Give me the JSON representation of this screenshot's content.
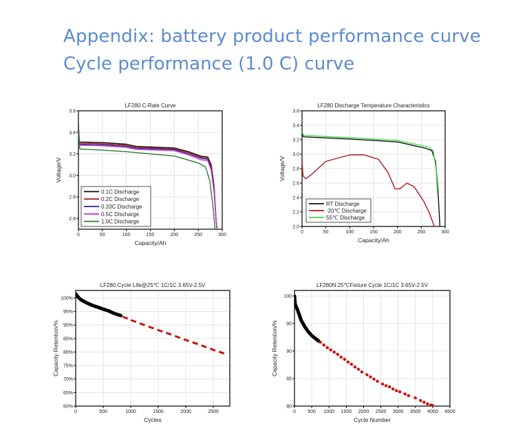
{
  "header": {
    "title": "Appendix: battery product performance curve",
    "subtitle": "Cycle performance (1.0 C) curve",
    "color": "#5b8bd0"
  },
  "chart_data": [
    {
      "type": "line",
      "title": "LF280 C-Rate Curve",
      "xlabel": "Capacity/Ah",
      "ylabel": "Voltage/V",
      "xlim": [
        0,
        300
      ],
      "ylim": [
        2.5,
        3.6
      ],
      "xticks": [
        0,
        50,
        100,
        150,
        200,
        250,
        300
      ],
      "yticks": [
        2.6,
        2.8,
        3.0,
        3.2,
        3.4,
        3.6
      ],
      "ytick_labels": [
        "2.6",
        "2.8",
        "3.0",
        "3.2",
        "3.4",
        "3.6"
      ],
      "grid": true,
      "legend": "bottom-left",
      "series": [
        {
          "name": "0.1C   Discharge",
          "color": "#111111",
          "points": [
            [
              0,
              3.47
            ],
            [
              2,
              3.31
            ],
            [
              50,
              3.305
            ],
            [
              100,
              3.29
            ],
            [
              120,
              3.27
            ],
            [
              200,
              3.255
            ],
            [
              230,
              3.22
            ],
            [
              255,
              3.18
            ],
            [
              270,
              3.17
            ],
            [
              277,
              3.1
            ],
            [
              283,
              2.9
            ],
            [
              287,
              2.6
            ],
            [
              289,
              2.5
            ]
          ]
        },
        {
          "name": "0.2C   Discharge",
          "color": "#b02020",
          "points": [
            [
              0,
              3.45
            ],
            [
              2,
              3.3
            ],
            [
              50,
              3.295
            ],
            [
              100,
              3.28
            ],
            [
              120,
              3.262
            ],
            [
              200,
              3.248
            ],
            [
              230,
              3.212
            ],
            [
              255,
              3.17
            ],
            [
              270,
              3.16
            ],
            [
              277,
              3.09
            ],
            [
              283,
              2.88
            ],
            [
              287,
              2.6
            ],
            [
              289,
              2.5
            ]
          ]
        },
        {
          "name": "0.33C Discharge",
          "color": "#22228a",
          "points": [
            [
              0,
              3.43
            ],
            [
              2,
              3.29
            ],
            [
              50,
              3.285
            ],
            [
              100,
              3.27
            ],
            [
              120,
              3.252
            ],
            [
              200,
              3.24
            ],
            [
              230,
              3.2
            ],
            [
              255,
              3.16
            ],
            [
              270,
              3.15
            ],
            [
              277,
              3.07
            ],
            [
              283,
              2.86
            ],
            [
              287,
              2.6
            ],
            [
              289,
              2.5
            ]
          ]
        },
        {
          "name": "0.5C   Discharge",
          "color": "#cc33cc",
          "points": [
            [
              0,
              3.41
            ],
            [
              2,
              3.28
            ],
            [
              50,
              3.275
            ],
            [
              100,
              3.26
            ],
            [
              120,
              3.242
            ],
            [
              200,
              3.23
            ],
            [
              230,
              3.19
            ],
            [
              255,
              3.145
            ],
            [
              270,
              3.135
            ],
            [
              277,
              3.05
            ],
            [
              283,
              2.84
            ],
            [
              287,
              2.6
            ],
            [
              289,
              2.5
            ]
          ]
        },
        {
          "name": "1.0C   Discharge",
          "color": "#2e7d32",
          "points": [
            [
              0,
              3.4
            ],
            [
              3,
              3.245
            ],
            [
              50,
              3.235
            ],
            [
              100,
              3.22
            ],
            [
              200,
              3.18
            ],
            [
              250,
              3.115
            ],
            [
              265,
              3.08
            ],
            [
              274,
              2.95
            ],
            [
              281,
              2.7
            ],
            [
              285,
              2.5
            ]
          ]
        }
      ]
    },
    {
      "type": "line",
      "title": "LF280 Discharge Temperature Characteristics",
      "xlabel": "Capacity/Ah",
      "ylabel": "Voltage/V",
      "xlim": [
        0,
        300
      ],
      "ylim": [
        2.0,
        3.6
      ],
      "xticks": [
        0,
        50,
        100,
        150,
        200,
        250,
        300
      ],
      "yticks": [
        2.0,
        2.2,
        2.4,
        2.6,
        2.8,
        3.0,
        3.2,
        3.4,
        3.6
      ],
      "ytick_labels": [
        "2.0",
        "2.2",
        "2.4",
        "2.6",
        "2.8",
        "3.0",
        "3.2",
        "3.4",
        "3.6"
      ],
      "grid": true,
      "legend": "bottom-left",
      "series": [
        {
          "name": "RT        Discharge",
          "color": "#111111",
          "points": [
            [
              0,
              3.28
            ],
            [
              3,
              3.24
            ],
            [
              100,
              3.21
            ],
            [
              200,
              3.17
            ],
            [
              260,
              3.08
            ],
            [
              272,
              3.05
            ],
            [
              280,
              2.9
            ],
            [
              285,
              2.5
            ],
            [
              289,
              2.0
            ]
          ]
        },
        {
          "name": "-20℃   Discharge",
          "color": "#b01818",
          "points": [
            [
              0,
              2.9
            ],
            [
              2,
              2.7
            ],
            [
              8,
              2.66
            ],
            [
              20,
              2.72
            ],
            [
              50,
              2.9
            ],
            [
              100,
              2.99
            ],
            [
              130,
              2.99
            ],
            [
              160,
              2.93
            ],
            [
              180,
              2.75
            ],
            [
              195,
              2.52
            ],
            [
              205,
              2.52
            ],
            [
              220,
              2.6
            ],
            [
              235,
              2.55
            ],
            [
              255,
              2.35
            ],
            [
              268,
              2.17
            ],
            [
              277,
              2.0
            ]
          ]
        },
        {
          "name": "55℃    Discharge",
          "color": "#44dd44",
          "points": [
            [
              0,
              3.32
            ],
            [
              3,
              3.26
            ],
            [
              100,
              3.23
            ],
            [
              200,
              3.19
            ],
            [
              265,
              3.1
            ],
            [
              275,
              3.05
            ],
            [
              281,
              2.8
            ],
            [
              284,
              2.45
            ]
          ]
        }
      ]
    },
    {
      "type": "scatter",
      "title": "LF280  Cycle Life@25℃ 1C/1C 3.65V-2.5V",
      "xlabel": "Cycles",
      "ylabel": "Capacity Retention/%",
      "xlim": [
        0,
        2800
      ],
      "ylim": [
        60,
        102.8
      ],
      "xticks": [
        0,
        500,
        1000,
        1500,
        2000,
        2500
      ],
      "yticks": [
        60,
        65,
        70,
        75,
        80,
        85,
        90,
        95,
        100
      ],
      "ytick_labels": [
        "60%",
        "65%",
        "70%",
        "75%",
        "80%",
        "85%",
        "90%",
        "95%",
        "100%"
      ],
      "grid": true,
      "series": [
        {
          "color": "#000000",
          "style": "thick",
          "points": [
            [
              0,
              101.5
            ],
            [
              50,
              100.2
            ],
            [
              100,
              99.3
            ],
            [
              200,
              98.2
            ],
            [
              300,
              97.3
            ],
            [
              400,
              96.6
            ],
            [
              500,
              95.9
            ],
            [
              600,
              95.2
            ],
            [
              700,
              94.3
            ],
            [
              820,
              93.5
            ]
          ]
        },
        {
          "color": "#cc1111",
          "style": "dash",
          "points": [
            [
              900,
              92.7
            ],
            [
              1050,
              91.5
            ],
            [
              1210,
              90.3
            ],
            [
              1370,
              89.1
            ],
            [
              1530,
              87.9
            ],
            [
              1690,
              86.8
            ],
            [
              1850,
              85.6
            ],
            [
              2010,
              84.4
            ],
            [
              2170,
              83.3
            ],
            [
              2330,
              82.1
            ],
            [
              2490,
              80.9
            ],
            [
              2650,
              79.8
            ]
          ]
        }
      ]
    },
    {
      "type": "scatter",
      "title": "LF280N 25℃Fixture Cycle 1C/1C 3.65V-2.5V",
      "xlabel": "Cycle Number",
      "ylabel": "Capacity Retention/%",
      "xlim": [
        0,
        4500
      ],
      "ylim": [
        80,
        101
      ],
      "xticks": [
        0,
        500,
        1000,
        1500,
        2000,
        2500,
        3000,
        3500,
        4000,
        4500
      ],
      "yticks": [
        80,
        85,
        90,
        95,
        100
      ],
      "ytick_labels": [
        "80",
        "85",
        "90",
        "95",
        "100"
      ],
      "grid": true,
      "series": [
        {
          "color": "#000000",
          "style": "thick",
          "points": [
            [
              0,
              100
            ],
            [
              20,
              98.5
            ],
            [
              100,
              97.3
            ],
            [
              200,
              95.5
            ],
            [
              300,
              94.4
            ],
            [
              400,
              93.5
            ],
            [
              500,
              92.8
            ],
            [
              600,
              92.3
            ],
            [
              700,
              91.8
            ]
          ]
        },
        {
          "color": "#cc1111",
          "style": "dots",
          "points": [
            [
              750,
              91.6
            ],
            [
              850,
              91.1
            ],
            [
              950,
              90.6
            ],
            [
              1050,
              90.2
            ],
            [
              1150,
              89.8
            ],
            [
              1250,
              89.4
            ],
            [
              1350,
              88.9
            ],
            [
              1450,
              88.5
            ],
            [
              1550,
              88.0
            ],
            [
              1650,
              87.6
            ],
            [
              1750,
              87.1
            ],
            [
              1850,
              86.7
            ],
            [
              1950,
              86.2
            ],
            [
              2100,
              85.7
            ],
            [
              2200,
              85.3
            ],
            [
              2300,
              84.9
            ],
            [
              2400,
              84.5
            ],
            [
              2550,
              84.0
            ],
            [
              2650,
              83.7
            ],
            [
              2750,
              83.5
            ],
            [
              2850,
              83.1
            ],
            [
              2950,
              82.8
            ],
            [
              3050,
              82.6
            ],
            [
              3200,
              82.2
            ],
            [
              3300,
              81.9
            ],
            [
              3500,
              81.5
            ],
            [
              3650,
              81.0
            ],
            [
              3750,
              80.7
            ],
            [
              3850,
              80.4
            ],
            [
              3950,
              80.2
            ],
            [
              4000,
              80.1
            ]
          ]
        }
      ]
    }
  ]
}
